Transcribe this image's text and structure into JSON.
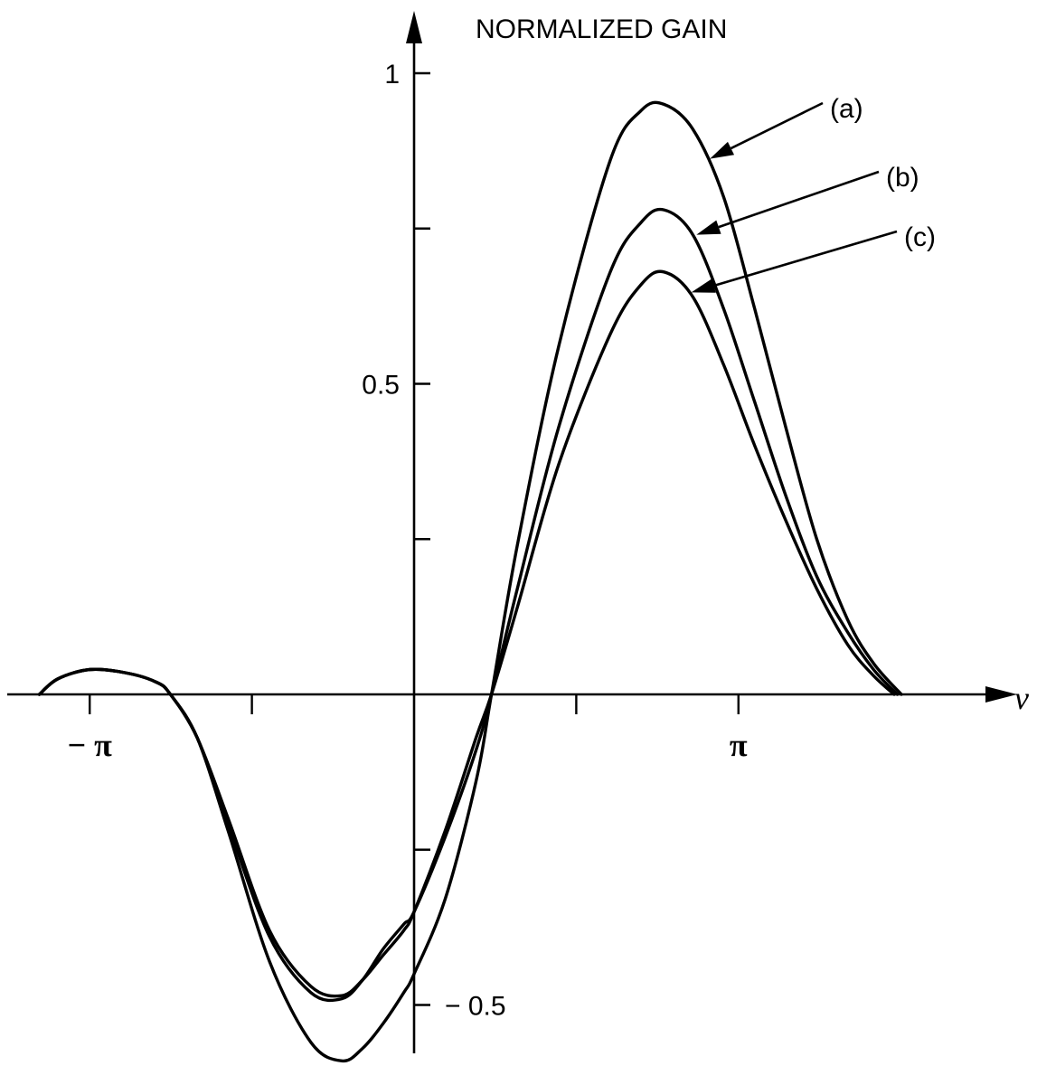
{
  "chart_data": {
    "type": "line",
    "title": "",
    "ylabel": "NORMALIZED GAIN",
    "xlabel": "ν",
    "xlim": [
      -3.7,
      4.4
    ],
    "ylim": [
      -0.63,
      1.08
    ],
    "x_tick_values": [
      -3.1416,
      -1.5708,
      0,
      1.5708,
      3.1416
    ],
    "x_tick_labels": [
      {
        "value": -3.1416,
        "label": "− π"
      },
      {
        "value": 3.1416,
        "label": "π"
      }
    ],
    "y_tick_values": [
      -0.5,
      -0.25,
      0,
      0.25,
      0.5,
      0.75,
      1.0
    ],
    "y_tick_labels": [
      {
        "value": 1.0,
        "label": "1"
      },
      {
        "value": 0.5,
        "label": "0.5"
      },
      {
        "value": -0.5,
        "label": "− 0.5"
      }
    ],
    "grid": false,
    "series": [
      {
        "name": "(a)",
        "x": [
          -3.63,
          -3.45,
          -3.14,
          -2.8,
          -2.5,
          -2.36,
          -2.1,
          -1.8,
          -1.4,
          -1.0,
          -0.7,
          -0.5,
          -0.3,
          -0.1,
          0.0,
          0.3,
          0.6,
          0.75,
          1.0,
          1.4,
          1.9,
          2.2,
          2.42,
          2.7,
          3.0,
          3.3,
          3.6,
          3.9,
          4.2,
          4.45,
          4.72
        ],
        "y": [
          0.0,
          0.025,
          0.04,
          0.035,
          0.02,
          0.0,
          -0.07,
          -0.22,
          -0.43,
          -0.56,
          -0.59,
          -0.57,
          -0.53,
          -0.48,
          -0.45,
          -0.33,
          -0.14,
          0.0,
          0.24,
          0.56,
          0.86,
          0.94,
          0.95,
          0.91,
          0.8,
          0.62,
          0.43,
          0.25,
          0.12,
          0.05,
          0.0
        ]
      },
      {
        "name": "(b)",
        "x": [
          -3.63,
          -3.45,
          -3.14,
          -2.8,
          -2.5,
          -2.36,
          -2.1,
          -1.8,
          -1.4,
          -1.0,
          -0.7,
          -0.5,
          -0.3,
          -0.1,
          0.0,
          0.3,
          0.6,
          0.75,
          1.0,
          1.4,
          1.9,
          2.2,
          2.42,
          2.7,
          3.0,
          3.3,
          3.6,
          3.9,
          4.2,
          4.45,
          4.68
        ],
        "y": [
          0.0,
          0.025,
          0.04,
          0.035,
          0.02,
          0.0,
          -0.07,
          -0.21,
          -0.39,
          -0.48,
          -0.49,
          -0.46,
          -0.41,
          -0.37,
          -0.35,
          -0.23,
          -0.09,
          0.0,
          0.17,
          0.43,
          0.68,
          0.76,
          0.78,
          0.74,
          0.62,
          0.47,
          0.32,
          0.19,
          0.1,
          0.04,
          0.0
        ]
      },
      {
        "name": "(c)",
        "x": [
          -3.63,
          -3.45,
          -3.14,
          -2.8,
          -2.5,
          -2.36,
          -2.1,
          -1.8,
          -1.4,
          -1.0,
          -0.7,
          -0.5,
          -0.3,
          -0.1,
          0.0,
          0.3,
          0.6,
          0.75,
          1.0,
          1.4,
          1.9,
          2.2,
          2.42,
          2.7,
          3.0,
          3.3,
          3.6,
          3.9,
          4.2,
          4.45,
          4.65
        ],
        "y": [
          0.0,
          0.025,
          0.04,
          0.035,
          0.02,
          0.0,
          -0.07,
          -0.2,
          -0.38,
          -0.47,
          -0.485,
          -0.46,
          -0.42,
          -0.38,
          -0.35,
          -0.22,
          -0.07,
          0.0,
          0.14,
          0.37,
          0.58,
          0.66,
          0.68,
          0.64,
          0.53,
          0.4,
          0.28,
          0.17,
          0.08,
          0.03,
          0.0
        ]
      }
    ],
    "annotations": [
      {
        "label": "(a)",
        "series": "(a)",
        "points_at_x": 2.83
      },
      {
        "label": "(b)",
        "series": "(b)",
        "points_at_x": 2.7
      },
      {
        "label": "(c)",
        "series": "(c)",
        "points_at_x": 2.65
      }
    ]
  }
}
